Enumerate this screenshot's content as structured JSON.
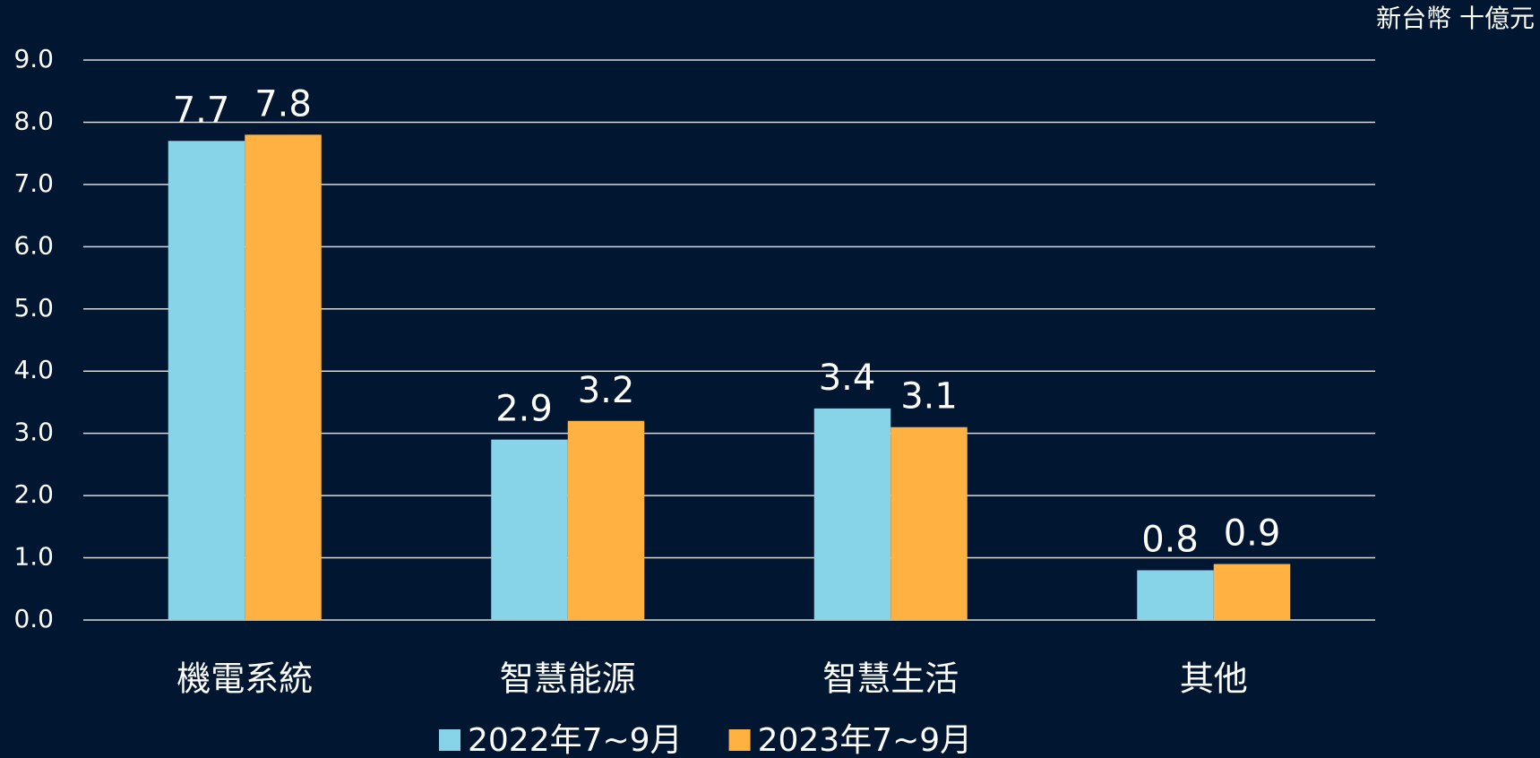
{
  "chart_data": {
    "type": "bar",
    "unit": "新台幣 十億元",
    "categories": [
      "機電系統",
      "智慧能源",
      "智慧生活",
      "其他"
    ],
    "series": [
      {
        "name": "2022年7~9月",
        "color": "#87d3e8",
        "values": [
          7.7,
          2.9,
          3.4,
          0.8
        ]
      },
      {
        "name": "2023年7~9月",
        "color": "#ffb142",
        "values": [
          7.8,
          3.2,
          3.1,
          0.9
        ]
      }
    ],
    "ylim": [
      0,
      9
    ],
    "yticks": [
      {
        "value": 0,
        "label": "0.0"
      },
      {
        "value": 1,
        "label": "1.0"
      },
      {
        "value": 2,
        "label": "2.0"
      },
      {
        "value": 3,
        "label": "3.0"
      },
      {
        "value": 4,
        "label": "4.0"
      },
      {
        "value": 5,
        "label": "5.0"
      },
      {
        "value": 6,
        "label": "6.0"
      },
      {
        "value": 7,
        "label": "7.0"
      },
      {
        "value": 8,
        "label": "8.0"
      },
      {
        "value": 9,
        "label": "9.0"
      }
    ],
    "grid": true,
    "legend": "bottom"
  }
}
